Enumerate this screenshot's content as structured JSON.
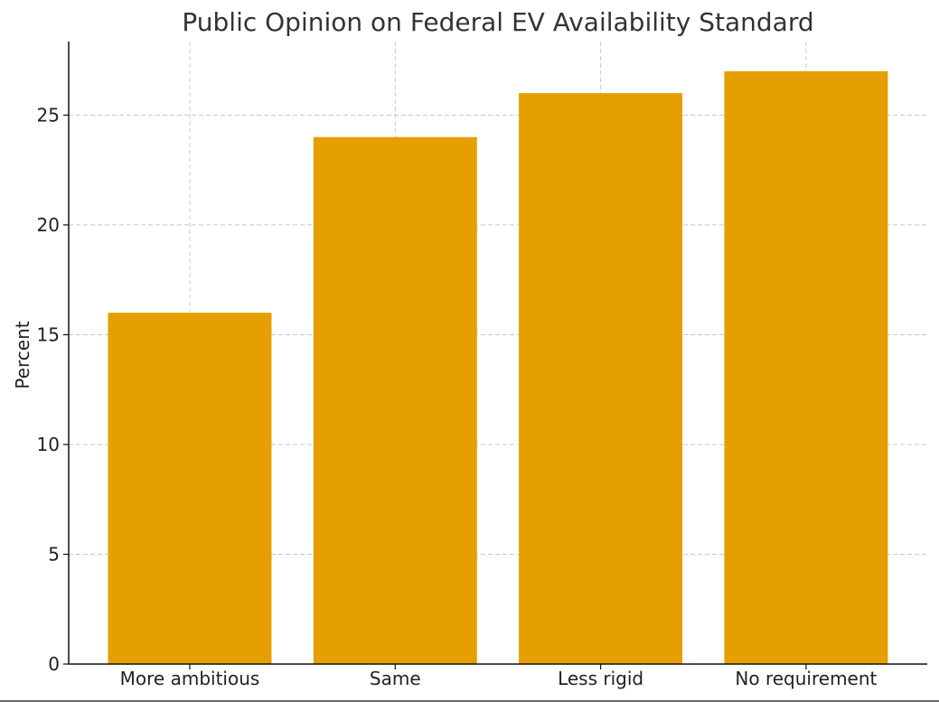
{
  "chart_data": {
    "type": "bar",
    "title": "Public Opinion on Federal EV Availability Standard",
    "xlabel": "",
    "ylabel": "Percent",
    "categories": [
      "More ambitious",
      "Same",
      "Less rigid",
      "No requirement"
    ],
    "values": [
      16,
      24,
      26,
      27
    ],
    "ylim": [
      0,
      28.35
    ],
    "yticks": [
      0,
      5,
      10,
      15,
      20,
      25
    ],
    "grid": true,
    "bar_color": "#E69F00"
  }
}
